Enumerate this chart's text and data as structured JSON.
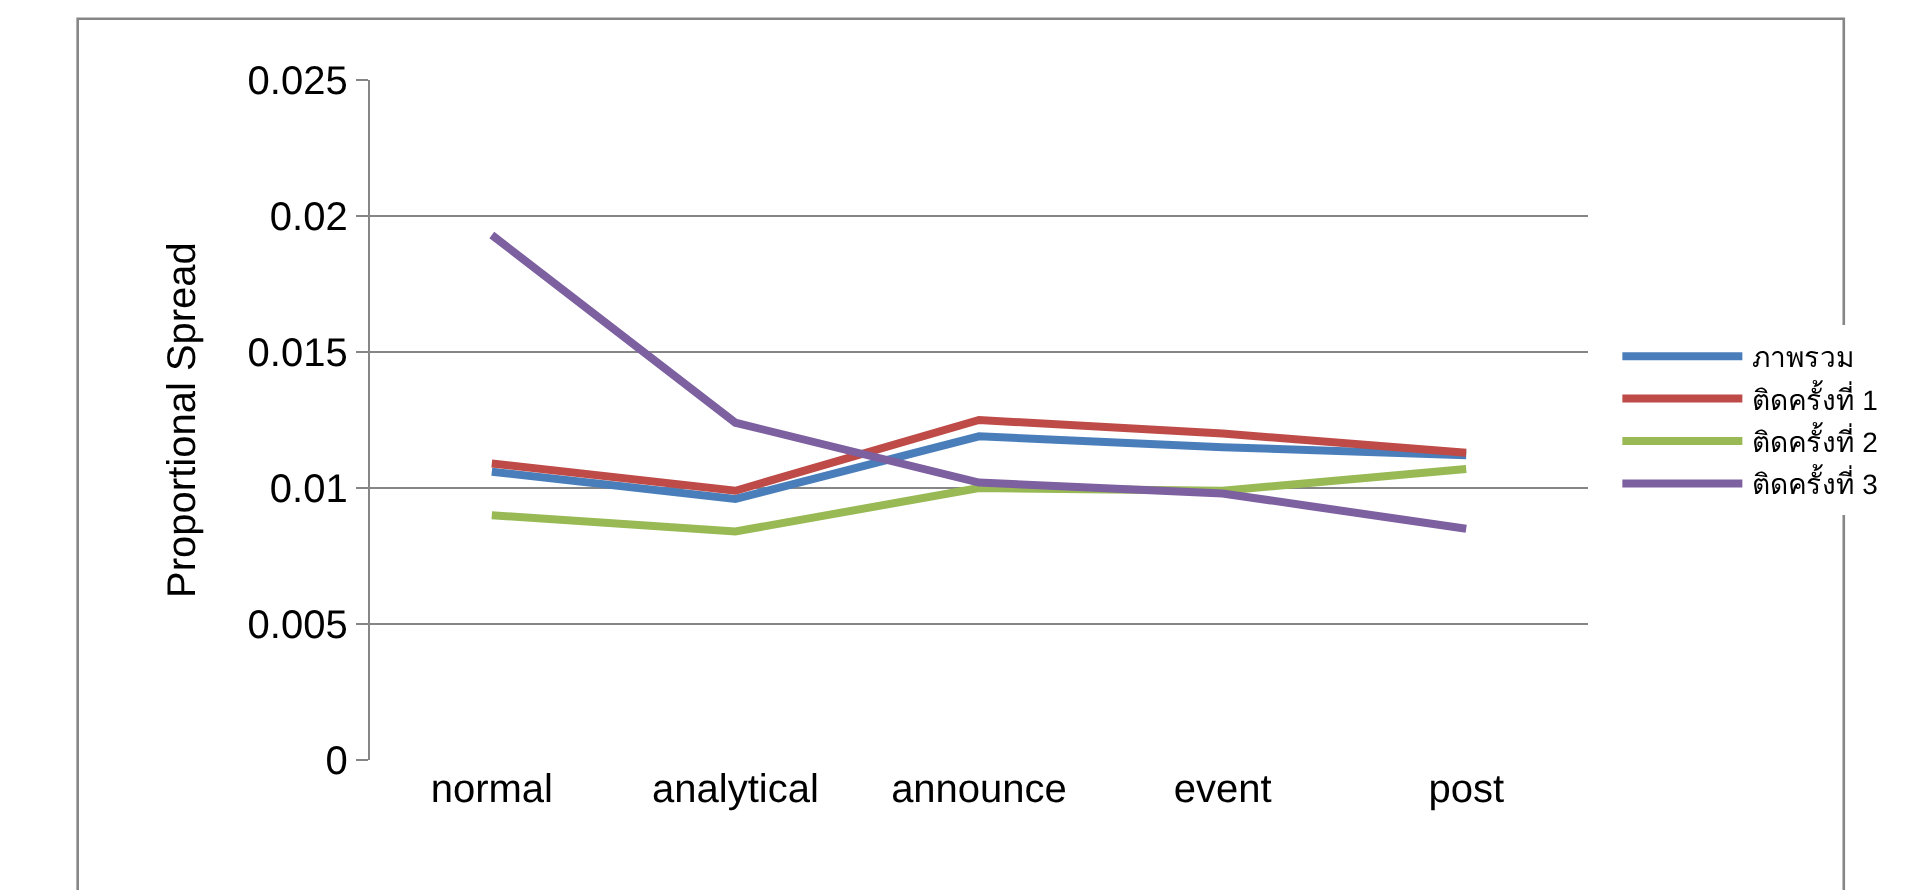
{
  "chart_data": {
    "type": "line",
    "ylabel": "Proportional Spread",
    "categories": [
      "normal",
      "analytical",
      "announce",
      "event",
      "post"
    ],
    "series": [
      {
        "name": "ภาพรวม",
        "color": "#4a7ebb",
        "values": [
          0.0106,
          0.0096,
          0.0119,
          0.0115,
          0.0112
        ]
      },
      {
        "name": "ติดครั้งที่ 1",
        "color": "#be4b48",
        "values": [
          0.0109,
          0.0099,
          0.0125,
          0.012,
          0.0113
        ]
      },
      {
        "name": "ติดครั้งที่ 2",
        "color": "#98b954",
        "values": [
          0.009,
          0.0084,
          0.01,
          0.0099,
          0.0107
        ]
      },
      {
        "name": "ติดครั้งที่ 3",
        "color": "#7d60a0",
        "values": [
          0.0193,
          0.0124,
          0.0102,
          0.0098,
          0.0085
        ]
      }
    ],
    "ylim": [
      0,
      0.025
    ],
    "yticks": [
      0,
      0.005,
      0.01,
      0.015,
      0.02,
      0.025
    ],
    "grid": "y",
    "legend": "right",
    "marker": "none",
    "line_style": "solid"
  }
}
